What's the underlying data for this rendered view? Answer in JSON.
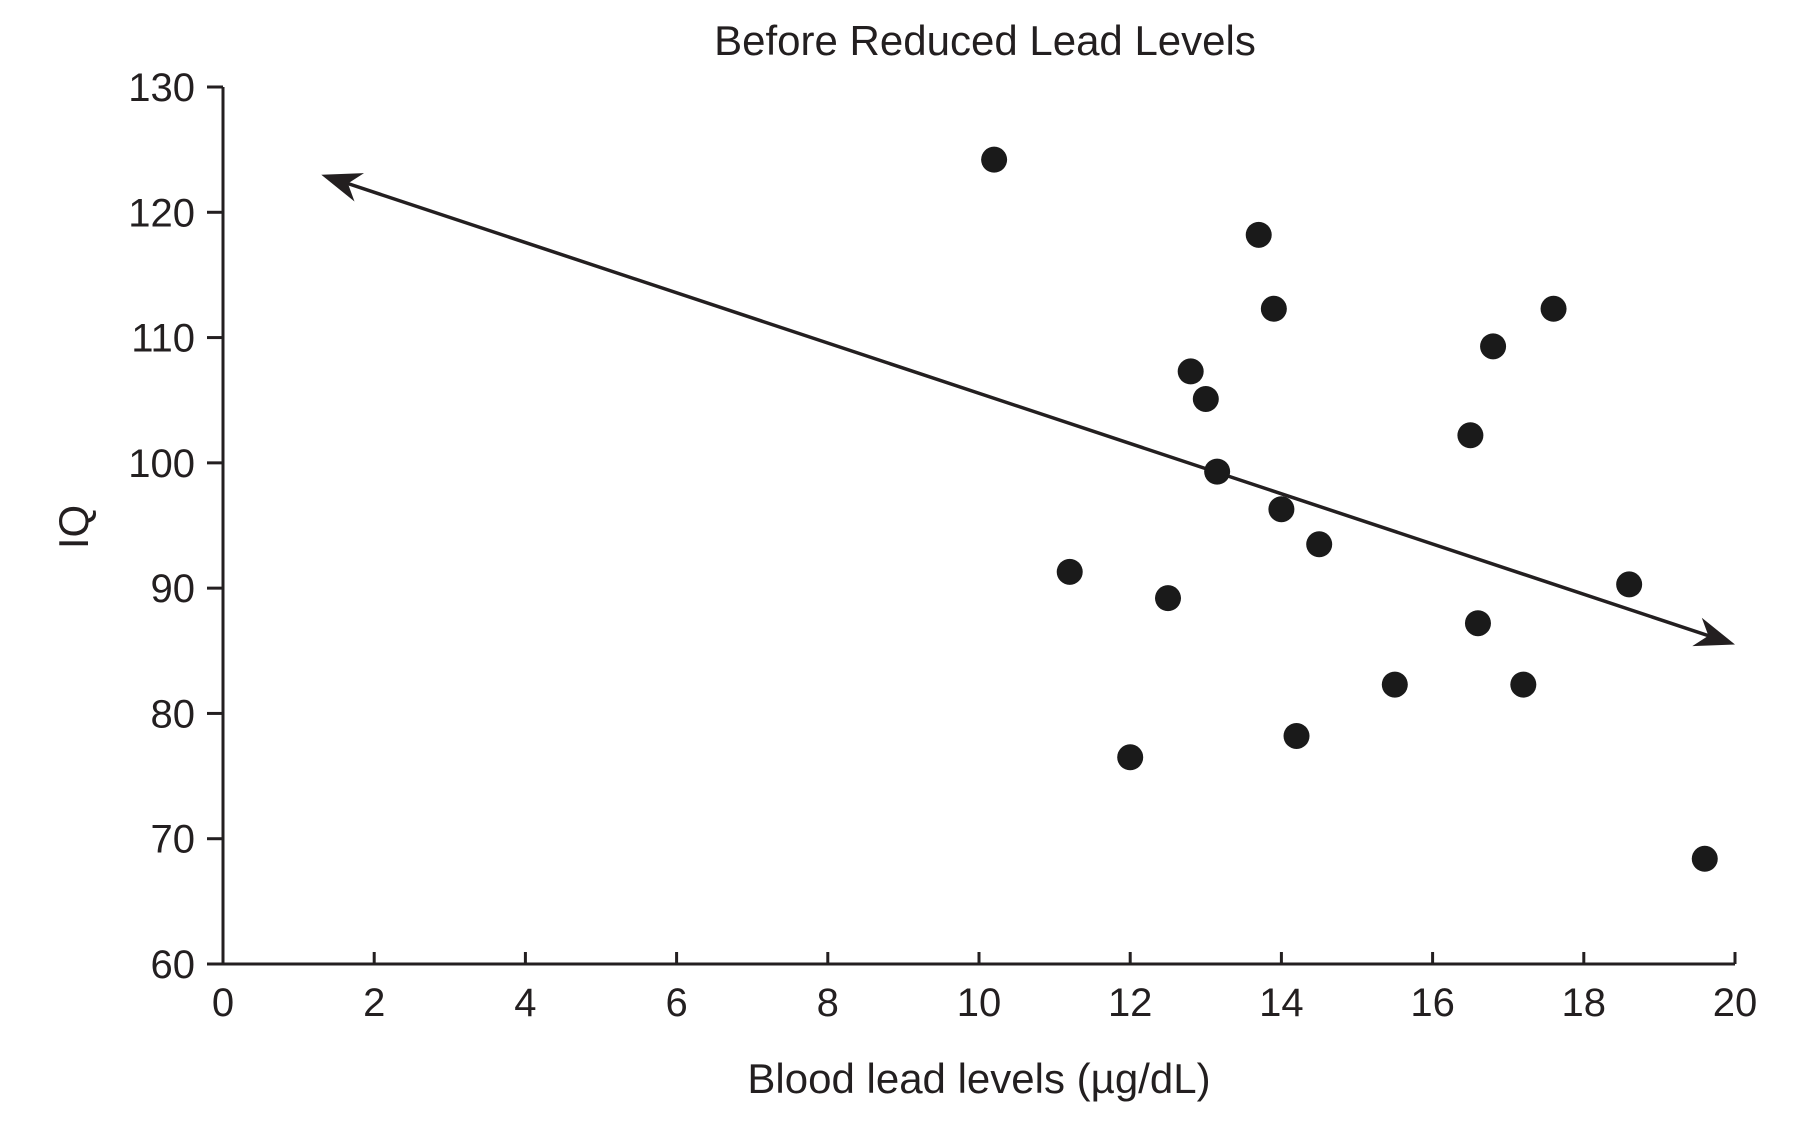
{
  "chart_data": {
    "type": "scatter",
    "title": "Before Reduced Lead Levels",
    "xlabel": "Blood lead levels (µg/dL)",
    "ylabel": "IQ",
    "xlim": [
      0,
      20
    ],
    "ylim": [
      60,
      130
    ],
    "x_ticks": [
      "0",
      "2",
      "4",
      "6",
      "8",
      "10",
      "12",
      "14",
      "16",
      "18",
      "20"
    ],
    "y_ticks": [
      "60",
      "70",
      "80",
      "90",
      "100",
      "110",
      "120",
      "130"
    ],
    "grid": false,
    "legend": "none",
    "points": [
      {
        "x": 10.2,
        "y": 124.2
      },
      {
        "x": 11.2,
        "y": 91.3
      },
      {
        "x": 12.0,
        "y": 76.5
      },
      {
        "x": 12.5,
        "y": 89.2
      },
      {
        "x": 12.8,
        "y": 107.3
      },
      {
        "x": 13.0,
        "y": 105.1
      },
      {
        "x": 13.15,
        "y": 99.3
      },
      {
        "x": 13.7,
        "y": 118.2
      },
      {
        "x": 13.9,
        "y": 112.3
      },
      {
        "x": 14.0,
        "y": 96.3
      },
      {
        "x": 14.2,
        "y": 78.2
      },
      {
        "x": 14.5,
        "y": 93.5
      },
      {
        "x": 15.5,
        "y": 82.3
      },
      {
        "x": 16.5,
        "y": 102.2
      },
      {
        "x": 16.6,
        "y": 87.2
      },
      {
        "x": 16.8,
        "y": 109.3
      },
      {
        "x": 17.2,
        "y": 82.3
      },
      {
        "x": 17.6,
        "y": 112.3
      },
      {
        "x": 18.6,
        "y": 90.3
      },
      {
        "x": 19.6,
        "y": 68.4
      }
    ],
    "trend_line": {
      "start": {
        "x": 1.3,
        "y": 123.0
      },
      "end": {
        "x": 20.0,
        "y": 85.5
      },
      "arrows": "both"
    }
  }
}
